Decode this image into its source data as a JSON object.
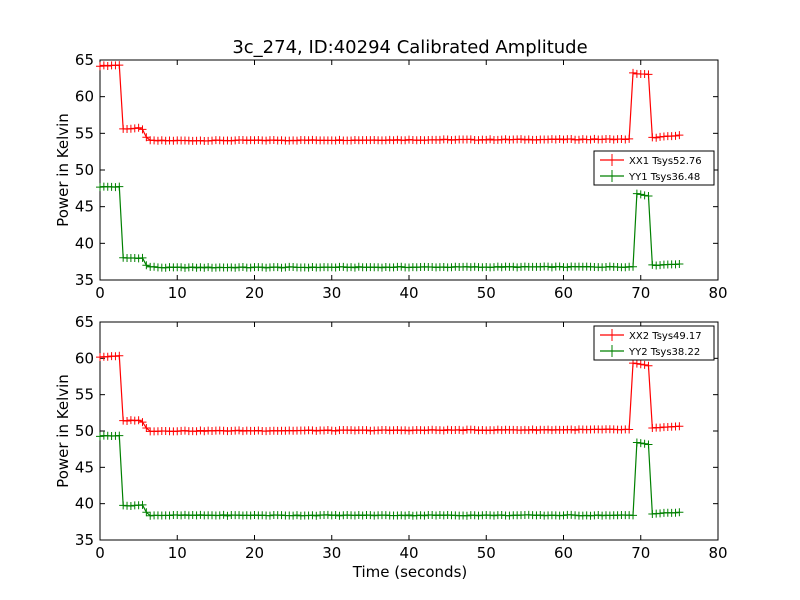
{
  "figure": {
    "title": "3c_274, ID:40294 Calibrated Amplitude"
  },
  "chart_data": [
    {
      "type": "line",
      "title": "3c_274, ID:40294 Calibrated Amplitude",
      "xlabel": "",
      "ylabel": "Power in Kelvin",
      "xlim": [
        0,
        80
      ],
      "ylim": [
        35,
        65
      ],
      "xticks": [
        0,
        10,
        20,
        30,
        40,
        50,
        60,
        70,
        80
      ],
      "yticks": [
        35,
        40,
        45,
        50,
        55,
        60,
        65
      ],
      "grid": false,
      "legend_position": "center-right",
      "marker": "plus",
      "series": [
        {
          "name": "XX1 Tsys52.76",
          "color": "#ff0000",
          "profile": [
            [
              0,
              64.2
            ],
            [
              2.5,
              64.3
            ],
            [
              3,
              55.6
            ],
            [
              5,
              55.7
            ],
            [
              5.5,
              55.5
            ],
            [
              6,
              54.5
            ],
            [
              6.5,
              54.0
            ],
            [
              8,
              54.0
            ],
            [
              68.5,
              54.2
            ],
            [
              69,
              63.2
            ],
            [
              71,
              63.0
            ],
            [
              71.5,
              54.4
            ],
            [
              75,
              54.7
            ]
          ]
        },
        {
          "name": "YY1 Tsys36.48",
          "color": "#008000",
          "profile": [
            [
              0,
              47.7
            ],
            [
              2.5,
              47.7
            ],
            [
              3,
              38.0
            ],
            [
              5.5,
              38.0
            ],
            [
              6,
              37.0
            ],
            [
              6.5,
              36.8
            ],
            [
              8,
              36.7
            ],
            [
              69,
              36.8
            ],
            [
              69.5,
              46.8
            ],
            [
              71,
              46.5
            ],
            [
              71.5,
              37.0
            ],
            [
              75,
              37.2
            ]
          ]
        }
      ]
    },
    {
      "type": "line",
      "xlabel": "Time (seconds)",
      "ylabel": "Power in Kelvin",
      "xlim": [
        0,
        80
      ],
      "ylim": [
        35,
        65
      ],
      "xticks": [
        0,
        10,
        20,
        30,
        40,
        50,
        60,
        70,
        80
      ],
      "yticks": [
        35,
        40,
        45,
        50,
        55,
        60,
        65
      ],
      "grid": false,
      "legend_position": "top-right",
      "marker": "plus",
      "series": [
        {
          "name": "XX2 Tsys49.17",
          "color": "#ff0000",
          "profile": [
            [
              0,
              60.2
            ],
            [
              2.5,
              60.3
            ],
            [
              3,
              51.4
            ],
            [
              5,
              51.5
            ],
            [
              5.5,
              51.2
            ],
            [
              6,
              50.4
            ],
            [
              6.5,
              50.0
            ],
            [
              8,
              50.0
            ],
            [
              68.5,
              50.2
            ],
            [
              69,
              59.3
            ],
            [
              71,
              59.0
            ],
            [
              71.5,
              50.4
            ],
            [
              75,
              50.6
            ]
          ]
        },
        {
          "name": "YY2 Tsys38.22",
          "color": "#008000",
          "profile": [
            [
              0,
              49.3
            ],
            [
              2.5,
              49.4
            ],
            [
              3,
              39.7
            ],
            [
              5.5,
              39.8
            ],
            [
              6,
              38.8
            ],
            [
              6.5,
              38.4
            ],
            [
              8,
              38.4
            ],
            [
              69,
              38.4
            ],
            [
              69.5,
              48.4
            ],
            [
              71,
              48.2
            ],
            [
              71.5,
              38.6
            ],
            [
              75,
              38.8
            ]
          ]
        }
      ]
    }
  ]
}
